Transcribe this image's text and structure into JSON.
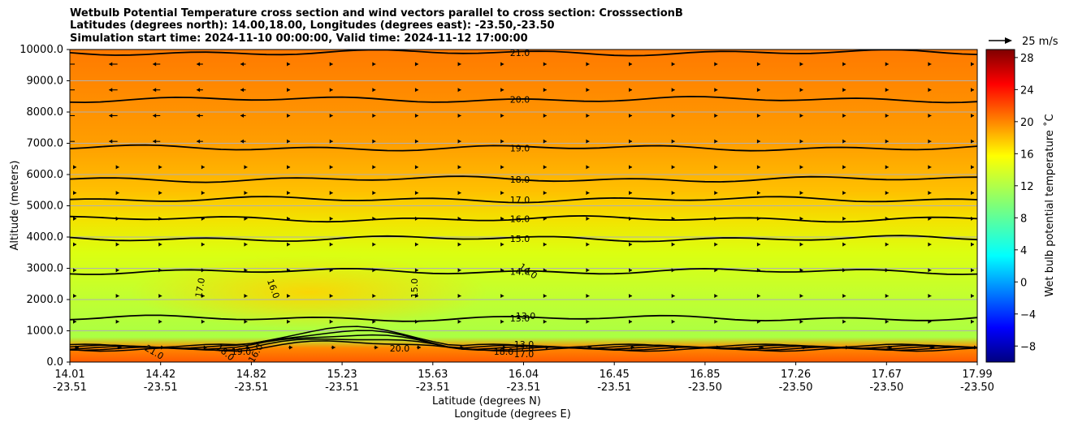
{
  "chart_data": {
    "type": "contour",
    "title_lines": [
      "Wetbulb Potential Temperature cross section and wind vectors parallel to cross section: CrosssectionB",
      "Latitudes (degrees north): 14.00,18.00, Longitudes (degrees east): -23.50,-23.50",
      "Simulation start time: 2024-11-10 00:00:00, Valid time: 2024-11-12 17:00:00"
    ],
    "ylabel": "Altitude (meters)",
    "xlabel_lat": "Latitude (degrees N)",
    "xlabel_lon": "Longitude (degrees E)",
    "ylim": [
      0,
      10000
    ],
    "yticks": [
      "0.0",
      "1000.0",
      "2000.0",
      "3000.0",
      "4000.0",
      "5000.0",
      "6000.0",
      "7000.0",
      "8000.0",
      "9000.0",
      "10000.0"
    ],
    "yticks_values": [
      0,
      1000,
      2000,
      3000,
      4000,
      5000,
      6000,
      7000,
      8000,
      9000,
      10000
    ],
    "xticks_lat": [
      "14.01",
      "14.42",
      "14.82",
      "15.23",
      "15.63",
      "16.04",
      "16.45",
      "16.85",
      "17.26",
      "17.67",
      "17.99"
    ],
    "xticks_lon": [
      "-23.51",
      "-23.51",
      "-23.51",
      "-23.51",
      "-23.51",
      "-23.51",
      "-23.51",
      "-23.50",
      "-23.50",
      "-23.50",
      "-23.50"
    ],
    "xlim": [
      14.01,
      17.99
    ],
    "grid": "horizontal",
    "colorbar": {
      "label": "Wet bulb potential temperature ˚C",
      "range": [
        -10,
        29
      ],
      "ticks": [
        "−8",
        "−4",
        "0",
        "4",
        "8",
        "12",
        "16",
        "20",
        "24",
        "28"
      ],
      "ticks_values": [
        -8,
        -4,
        0,
        4,
        8,
        12,
        16,
        20,
        24,
        28
      ],
      "colormap": "jet"
    },
    "quiver_key": "25 m/s",
    "contours": [
      {
        "label": "21.0",
        "altitude": 9900
      },
      {
        "label": "20.0",
        "altitude": 8400
      },
      {
        "label": "19.0",
        "altitude": 6850
      },
      {
        "label": "18.0",
        "altitude": 5850
      },
      {
        "label": "17.0",
        "altitude": 5200
      },
      {
        "label": "16.0",
        "altitude": 4580
      },
      {
        "label": "15.0",
        "altitude": 3950
      },
      {
        "label": "14.0",
        "altitude": 2900
      },
      {
        "label": "13.0",
        "altitude": 1400
      }
    ],
    "inline_labels": [
      "17.0",
      "16.0",
      "15.0",
      "14.0",
      "13.0",
      "16.0",
      "19.0",
      "18.0",
      "21.0",
      "20.0",
      "18.0",
      "17.0",
      "21.0",
      "13.0",
      "17.0"
    ]
  }
}
